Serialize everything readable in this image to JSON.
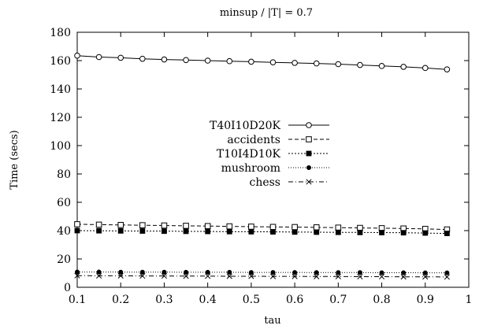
{
  "chart_data": {
    "type": "line",
    "title": "minsup / |T| = 0.7",
    "xlabel": "tau",
    "ylabel": "Time (secs)",
    "xlim": [
      0.1,
      1
    ],
    "ylim": [
      0,
      180
    ],
    "x_ticks": [
      "0.1",
      "0.2",
      "0.3",
      "0.4",
      "0.5",
      "0.6",
      "0.7",
      "0.8",
      "0.9",
      "1"
    ],
    "y_ticks": [
      "0",
      "20",
      "40",
      "60",
      "80",
      "100",
      "120",
      "140",
      "160",
      "180"
    ],
    "grid": false,
    "legend_position": "center-left",
    "x": [
      0.1,
      0.15,
      0.2,
      0.25,
      0.3,
      0.35,
      0.4,
      0.45,
      0.5,
      0.55,
      0.6,
      0.65,
      0.7,
      0.75,
      0.8,
      0.85,
      0.9,
      0.95
    ],
    "series": [
      {
        "name": "T40I10D20K",
        "marker": "open-circle",
        "dash": "solid",
        "values": [
          163.5,
          162.5,
          162.0,
          161.3,
          160.8,
          160.4,
          160.0,
          159.6,
          159.2,
          158.8,
          158.4,
          158.0,
          157.5,
          156.9,
          156.2,
          155.6,
          154.8,
          153.8
        ]
      },
      {
        "name": "accidents",
        "marker": "open-square",
        "dash": "dashed",
        "values": [
          44.5,
          44.2,
          44.0,
          43.8,
          43.6,
          43.4,
          43.2,
          43.0,
          42.8,
          42.6,
          42.5,
          42.3,
          42.1,
          41.9,
          41.7,
          41.5,
          41.2,
          40.8
        ]
      },
      {
        "name": "T10I4D10K",
        "marker": "filled-square",
        "dash": "dotted",
        "values": [
          40.0,
          39.9,
          39.8,
          39.7,
          39.6,
          39.5,
          39.4,
          39.3,
          39.2,
          39.1,
          39.0,
          38.9,
          38.8,
          38.7,
          38.6,
          38.5,
          38.3,
          38.0
        ]
      },
      {
        "name": "mushroom",
        "marker": "filled-circle",
        "dash": "fine-dotted",
        "values": [
          10.8,
          10.8,
          10.7,
          10.7,
          10.7,
          10.6,
          10.6,
          10.6,
          10.5,
          10.5,
          10.5,
          10.4,
          10.4,
          10.4,
          10.3,
          10.3,
          10.2,
          10.2
        ]
      },
      {
        "name": "chess",
        "marker": "cross",
        "dash": "dash-dot",
        "values": [
          8.2,
          8.1,
          8.1,
          8.0,
          8.0,
          7.9,
          7.9,
          7.8,
          7.8,
          7.7,
          7.7,
          7.6,
          7.6,
          7.5,
          7.5,
          7.4,
          7.4,
          7.3
        ]
      }
    ]
  }
}
